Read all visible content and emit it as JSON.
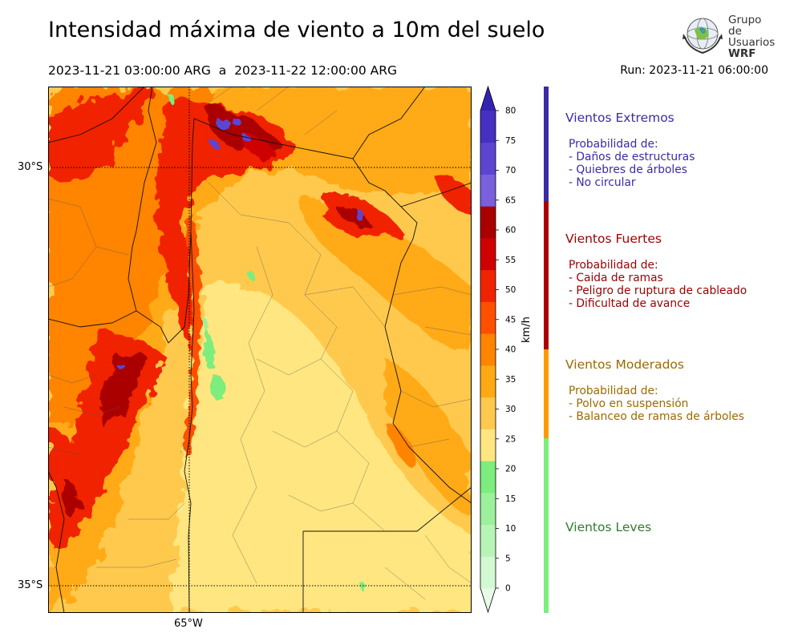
{
  "header": {
    "title": "Intensidad máxima de viento a 10m del suelo",
    "period": "2023-11-21 03:00:00 ARG  a  2023-11-22 12:00:00 ARG",
    "run": "Run: 2023-11-21 06:00:00"
  },
  "logo": {
    "line1": "Grupo de",
    "line2": "Usuarios",
    "line3": "WRF"
  },
  "map": {
    "lat_labels": [
      "30°S",
      "35°S"
    ],
    "lon_labels": [
      "65°W"
    ],
    "lat_values": [
      -30,
      -35
    ],
    "lon_values": [
      -65
    ]
  },
  "colorbar": {
    "unit": "km/h",
    "ticks": [
      "0",
      "5",
      "10",
      "15",
      "20",
      "25",
      "30",
      "35",
      "40",
      "45",
      "50",
      "55",
      "60",
      "65",
      "70",
      "75",
      "80"
    ],
    "colors": [
      "#e8fde8",
      "#d2f9d2",
      "#b7f5b7",
      "#9bf19b",
      "#7ded7d",
      "#ffe680",
      "#ffc94d",
      "#ffaa14",
      "#ff8400",
      "#ff5000",
      "#f02300",
      "#cf0000",
      "#aa0000",
      "#7a60dd",
      "#5d45d2",
      "#4530c2",
      "#3422b3"
    ]
  },
  "categories": [
    {
      "title": "Vientos Extremos",
      "color": "#3b2aa8",
      "items": [
        "Probabilidad de:",
        "- Daños de estructuras",
        "- Quiebres de árboles",
        "- No circular"
      ]
    },
    {
      "title": "Vientos Fuertes",
      "color": "#990000",
      "items": [
        "Probabilidad de:",
        "- Caida de ramas",
        "- Peligro de ruptura de cableado",
        "- Dificultad de avance"
      ]
    },
    {
      "title": "Vientos Moderados",
      "color": "#9c6a00",
      "items": [
        "Probabilidad de:",
        "- Polvo en suspensión",
        "- Balanceo de ramas de árboles"
      ]
    },
    {
      "title": "Vientos Leves",
      "color": "#2f7d2f",
      "items": []
    }
  ],
  "category_bar_colors": [
    "#3b2aa8",
    "#aa0000",
    "#ff9900",
    "#7ded7d"
  ]
}
